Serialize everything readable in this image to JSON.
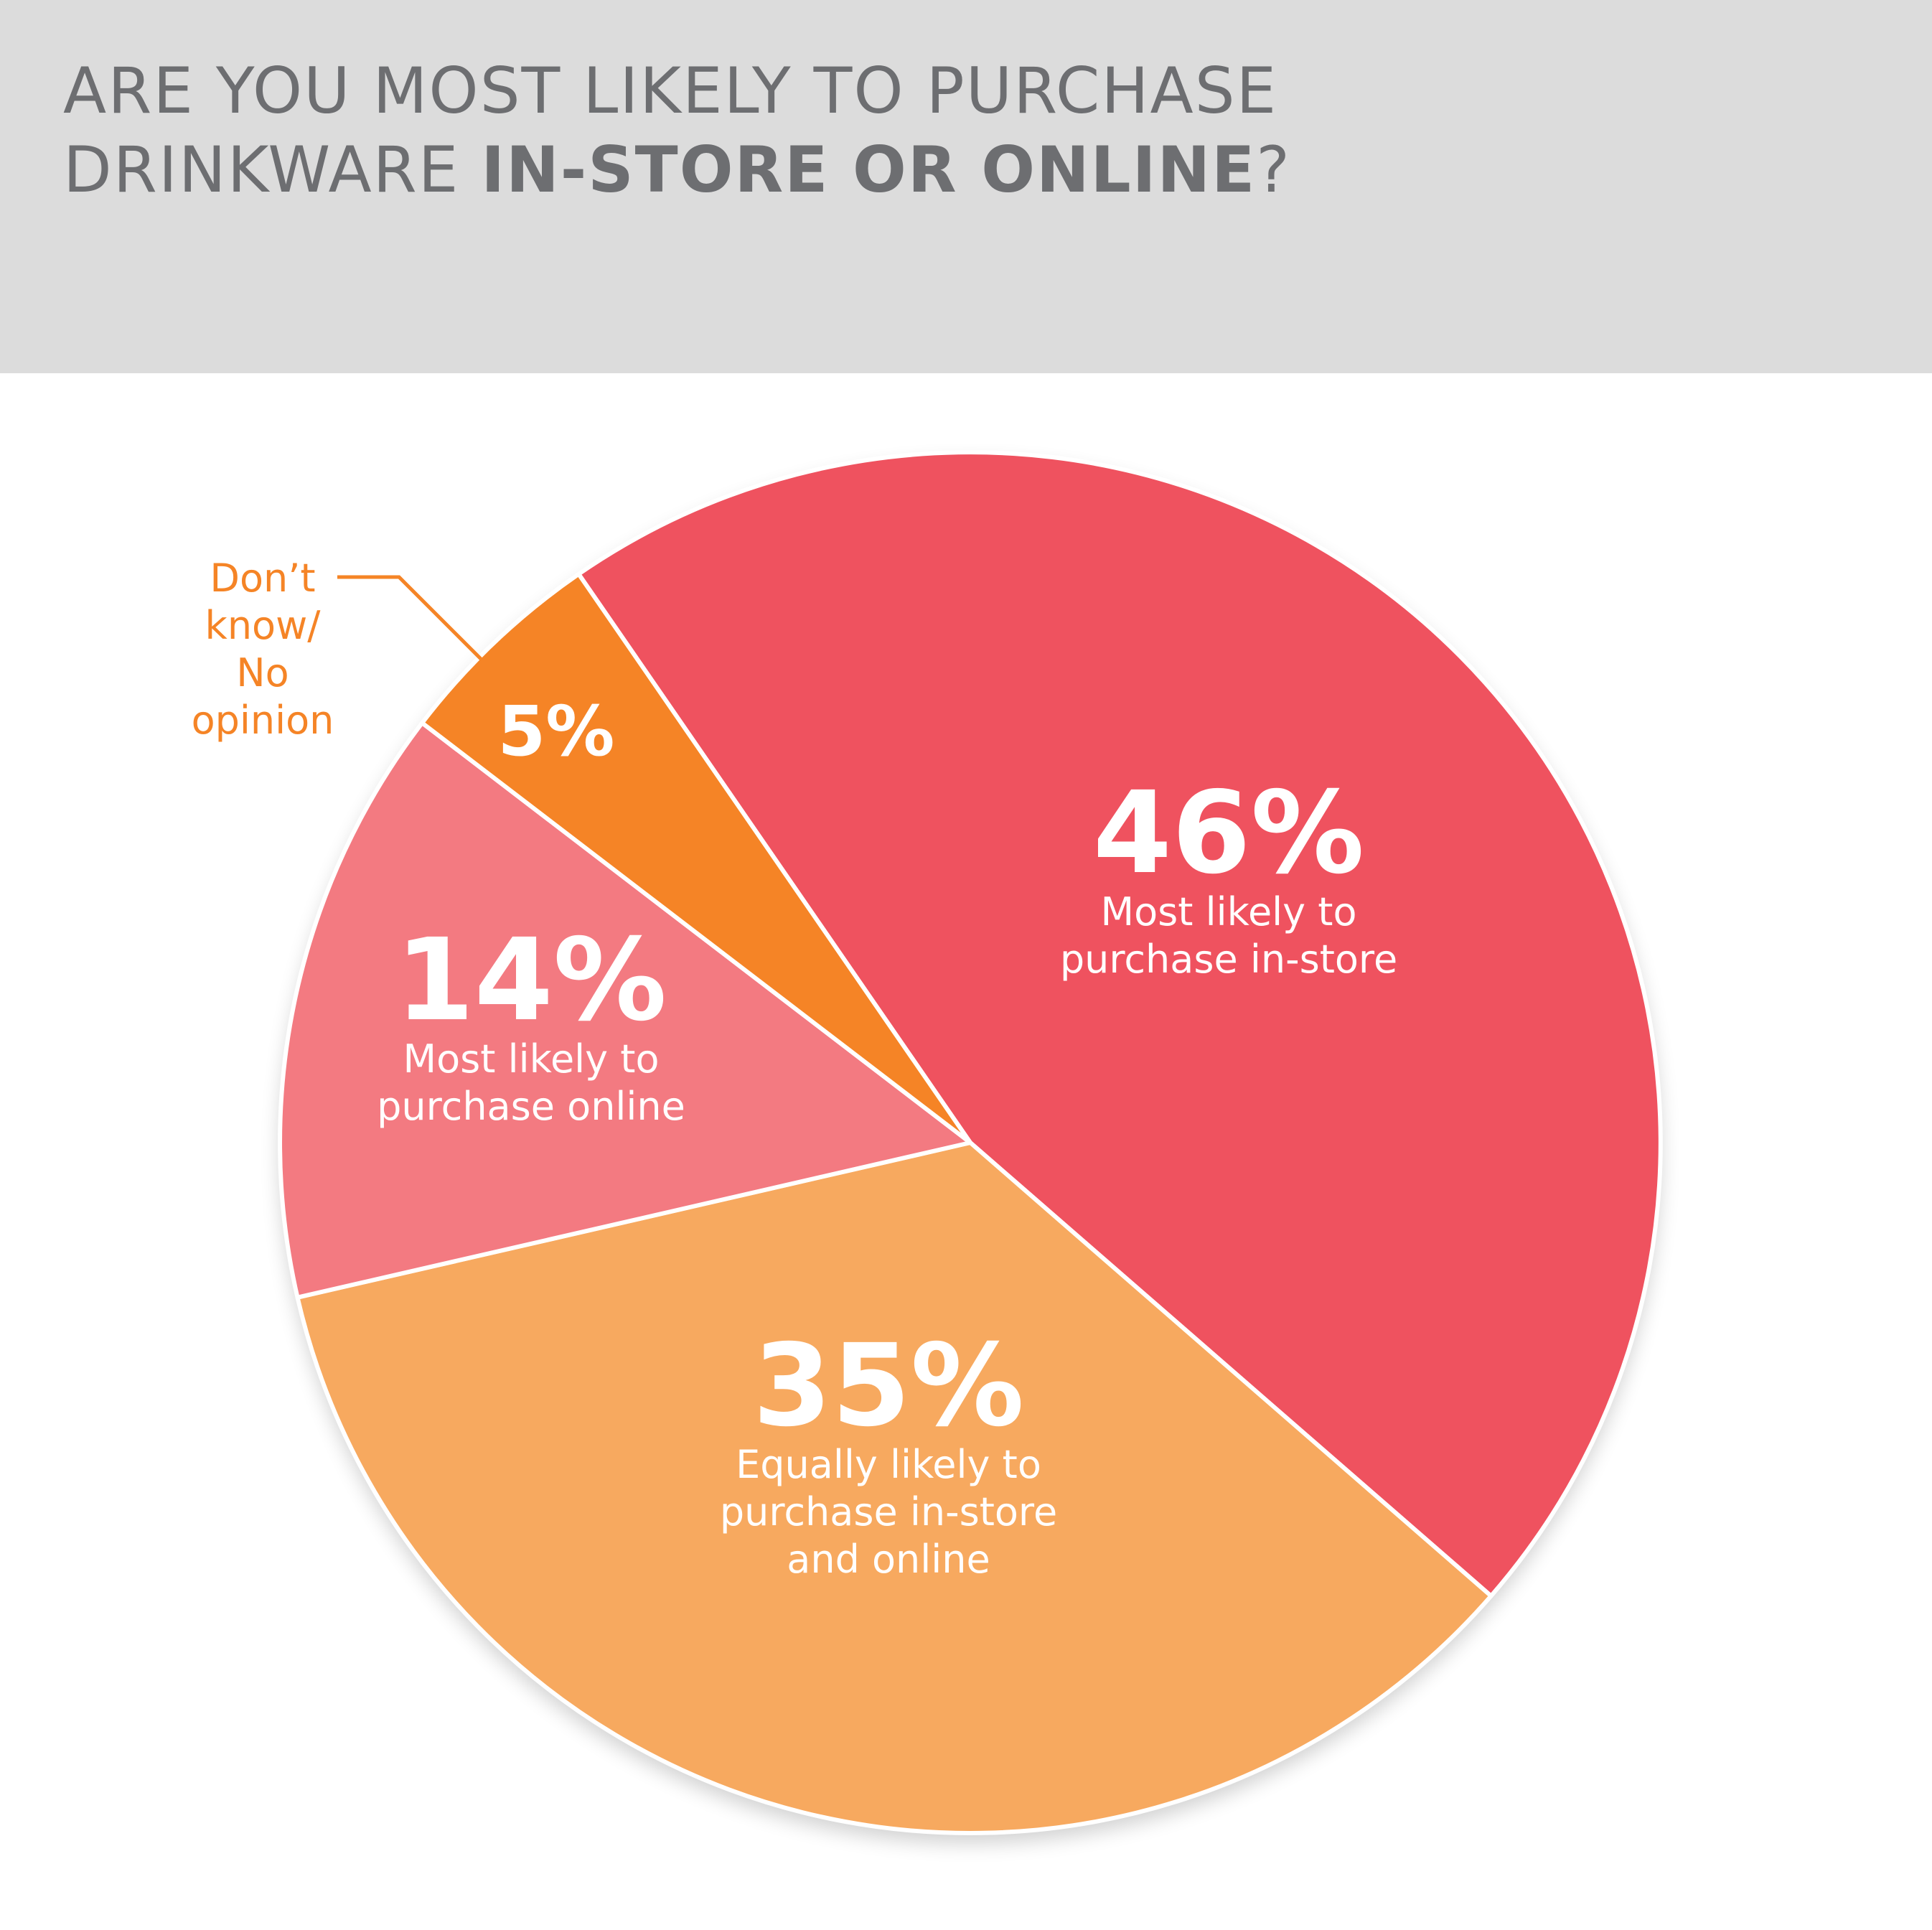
{
  "header": {
    "title_line1": "ARE YOU MOST LIKELY TO PURCHASE",
    "title_line2_regular": "DRINKWARE ",
    "title_line2_bold": "IN-STORE OR ONLINE",
    "title_line2_end": "?"
  },
  "colors": {
    "header_bg": "#dcdcdc",
    "title_text": "#6d6e71",
    "callout_text": "#f58426"
  },
  "chart_data": {
    "type": "pie",
    "title": "ARE YOU MOST LIKELY TO PURCHASE DRINKWARE IN-STORE OR ONLINE?",
    "unit": "%",
    "slices": [
      {
        "value": 46,
        "value_label": "46%",
        "label_lines": [
          "Most likely to",
          "purchase in-store"
        ],
        "color": "#ef525f"
      },
      {
        "value": 35,
        "value_label": "35%",
        "label_lines": [
          "Equally likely to",
          "purchase in-store",
          "and online"
        ],
        "color": "#f7a95f"
      },
      {
        "value": 14,
        "value_label": "14%",
        "label_lines": [
          "Most likely to",
          "purchase online"
        ],
        "color": "#f37a81"
      },
      {
        "value": 5,
        "value_label": "5%",
        "label_lines": [
          "Don’t",
          "know/",
          "No",
          "opinion"
        ],
        "color": "#f58426",
        "callout": true
      }
    ]
  }
}
